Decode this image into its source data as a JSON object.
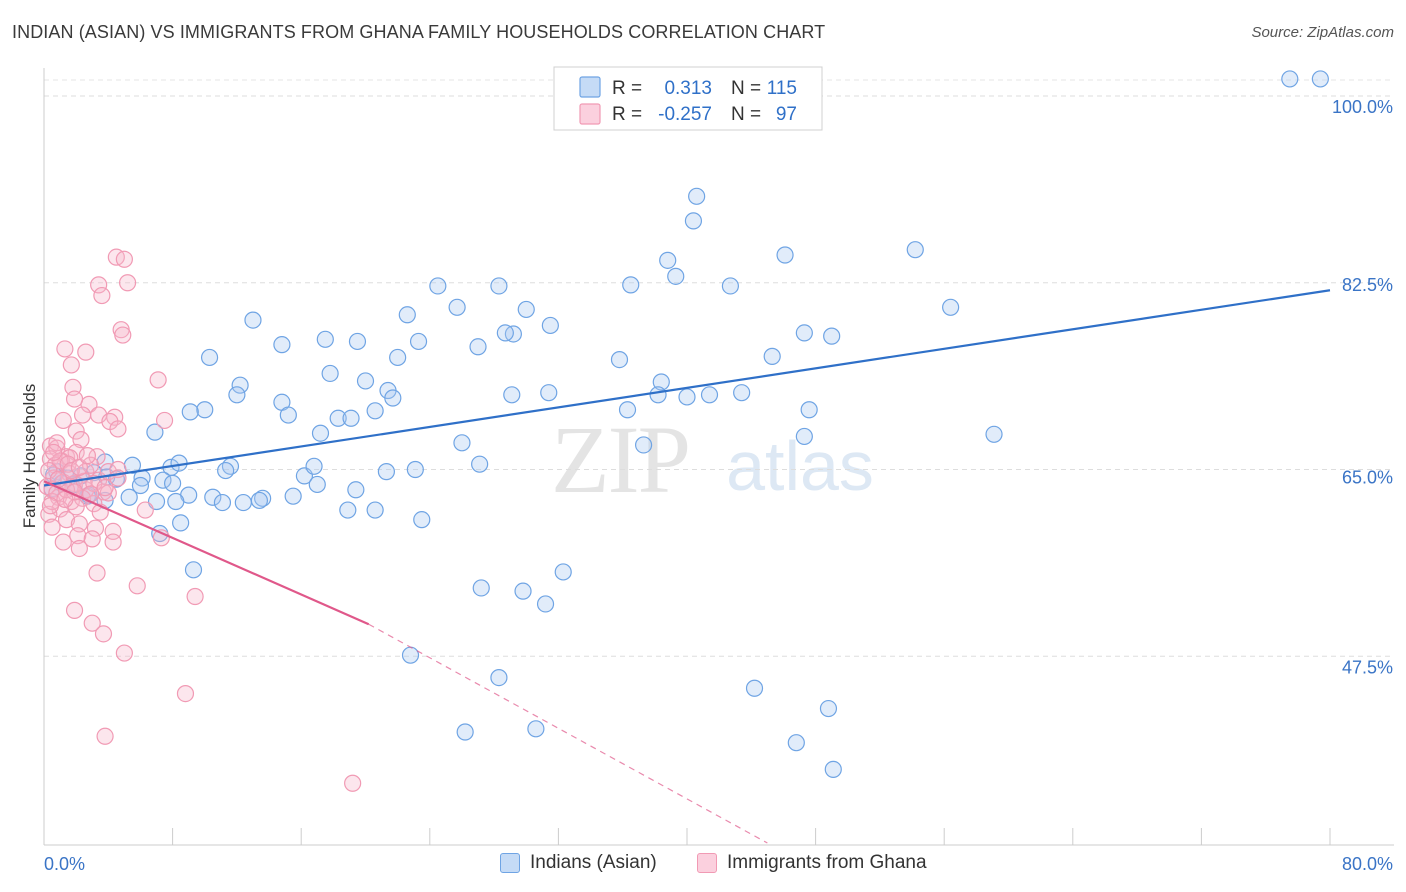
{
  "title": "INDIAN (ASIAN) VS IMMIGRANTS FROM GHANA FAMILY HOUSEHOLDS CORRELATION CHART",
  "source": "Source: ZipAtlas.com",
  "watermark": {
    "zip": "ZIP",
    "atlas": "atlas"
  },
  "legend_box": {
    "rows": [
      {
        "r_label": "R =",
        "r_value": "0.313",
        "n_label": "N =",
        "n_value": "115"
      },
      {
        "r_label": "R =",
        "r_value": "-0.257",
        "n_label": "N =",
        "n_value": "97"
      }
    ]
  },
  "chart_data": {
    "type": "scatter",
    "title": "INDIAN (ASIAN) VS IMMIGRANTS FROM GHANA FAMILY HOUSEHOLDS CORRELATION CHART",
    "xlabel": "",
    "ylabel": "Family Households",
    "xlim": [
      0,
      80
    ],
    "ylim": [
      30,
      101.5
    ],
    "x_tick_labels": [
      {
        "value": 0,
        "label": "0.0%"
      },
      {
        "value": 80,
        "label": "80.0%"
      }
    ],
    "y_tick_labels": [
      {
        "value": 100,
        "label": "100.0%"
      },
      {
        "value": 82.5,
        "label": "82.5%"
      },
      {
        "value": 65,
        "label": "65.0%"
      },
      {
        "value": 47.5,
        "label": "47.5%"
      }
    ],
    "grid": true,
    "series": [
      {
        "name": "Indians (Asian)",
        "color": "#6fa4e4",
        "line_color": "#2f70c8",
        "trend": {
          "x0": 0,
          "y0": 63.5,
          "x1": 80,
          "y1": 81.8
        },
        "points": [
          [
            77.5,
            101.6
          ],
          [
            79.4,
            101.6
          ],
          [
            40.6,
            90.6
          ],
          [
            40.4,
            88.3
          ],
          [
            54.2,
            85.6
          ],
          [
            46.1,
            85.1
          ],
          [
            38.8,
            84.6
          ],
          [
            39.3,
            83.1
          ],
          [
            24.5,
            82.2
          ],
          [
            28.3,
            82.2
          ],
          [
            36.5,
            82.3
          ],
          [
            42.7,
            82.2
          ],
          [
            56.4,
            80.2
          ],
          [
            25.7,
            80.2
          ],
          [
            30.0,
            80.0
          ],
          [
            22.6,
            79.5
          ],
          [
            13.0,
            79.0
          ],
          [
            31.5,
            78.5
          ],
          [
            47.3,
            77.8
          ],
          [
            49.0,
            77.5
          ],
          [
            17.5,
            77.2
          ],
          [
            23.3,
            77.0
          ],
          [
            19.5,
            77.0
          ],
          [
            29.2,
            77.7
          ],
          [
            28.7,
            77.8
          ],
          [
            14.8,
            76.7
          ],
          [
            27.0,
            76.5
          ],
          [
            45.3,
            75.6
          ],
          [
            22.0,
            75.5
          ],
          [
            35.8,
            75.3
          ],
          [
            10.3,
            75.5
          ],
          [
            17.8,
            74.0
          ],
          [
            38.4,
            73.2
          ],
          [
            20.0,
            73.3
          ],
          [
            12.2,
            72.9
          ],
          [
            38.2,
            72.0
          ],
          [
            21.4,
            72.4
          ],
          [
            12.0,
            72.0
          ],
          [
            31.4,
            72.2
          ],
          [
            43.4,
            72.2
          ],
          [
            41.4,
            72.0
          ],
          [
            29.1,
            72.0
          ],
          [
            21.7,
            71.7
          ],
          [
            40.0,
            71.8
          ],
          [
            14.8,
            71.3
          ],
          [
            20.6,
            70.5
          ],
          [
            10.0,
            70.6
          ],
          [
            36.3,
            70.6
          ],
          [
            47.6,
            70.6
          ],
          [
            9.1,
            70.4
          ],
          [
            15.2,
            70.1
          ],
          [
            18.3,
            69.8
          ],
          [
            19.1,
            69.8
          ],
          [
            17.2,
            68.4
          ],
          [
            6.9,
            68.5
          ],
          [
            59.1,
            68.3
          ],
          [
            47.3,
            68.1
          ],
          [
            26.0,
            67.5
          ],
          [
            37.3,
            67.3
          ],
          [
            7.9,
            65.2
          ],
          [
            5.5,
            65.4
          ],
          [
            3.8,
            65.7
          ],
          [
            0.8,
            64.8
          ],
          [
            1.5,
            64.2
          ],
          [
            3.1,
            64.7
          ],
          [
            7.4,
            64.0
          ],
          [
            8.4,
            65.6
          ],
          [
            11.6,
            65.3
          ],
          [
            11.3,
            64.9
          ],
          [
            16.2,
            64.4
          ],
          [
            17.0,
            63.6
          ],
          [
            21.3,
            64.8
          ],
          [
            23.1,
            65.0
          ],
          [
            16.8,
            65.3
          ],
          [
            27.1,
            65.5
          ],
          [
            2.3,
            64.4
          ],
          [
            3.9,
            64.3
          ],
          [
            4.5,
            64.1
          ],
          [
            1.1,
            63.7
          ],
          [
            0.5,
            63.2
          ],
          [
            0.6,
            64.5
          ],
          [
            1.9,
            63.6
          ],
          [
            6.1,
            64.2
          ],
          [
            6.0,
            63.5
          ],
          [
            8.0,
            63.7
          ],
          [
            9.0,
            62.6
          ],
          [
            10.5,
            62.4
          ],
          [
            12.4,
            61.9
          ],
          [
            13.6,
            62.3
          ],
          [
            15.5,
            62.5
          ],
          [
            19.4,
            63.1
          ],
          [
            2.7,
            62.5
          ],
          [
            2.8,
            62.6
          ],
          [
            3.8,
            62.1
          ],
          [
            5.3,
            62.4
          ],
          [
            7.0,
            62.0
          ],
          [
            8.2,
            62.0
          ],
          [
            11.1,
            61.9
          ],
          [
            13.4,
            62.1
          ],
          [
            18.9,
            61.2
          ],
          [
            20.6,
            61.2
          ],
          [
            23.5,
            60.3
          ],
          [
            8.5,
            60.0
          ],
          [
            7.2,
            59.0
          ],
          [
            9.3,
            55.6
          ],
          [
            32.3,
            55.4
          ],
          [
            27.2,
            53.9
          ],
          [
            31.2,
            52.4
          ],
          [
            29.8,
            53.6
          ],
          [
            22.8,
            47.6
          ],
          [
            28.3,
            45.5
          ],
          [
            44.2,
            44.5
          ],
          [
            48.8,
            42.6
          ],
          [
            26.2,
            40.4
          ],
          [
            30.6,
            40.7
          ],
          [
            46.8,
            39.4
          ],
          [
            49.1,
            36.9
          ]
        ]
      },
      {
        "name": "Immigrants from Ghana",
        "color": "#f19ab4",
        "line_color": "#e0588a",
        "trend": {
          "x0": 0,
          "y0": 63.9,
          "x1": 20.2,
          "y1": 50.5
        },
        "trend_dashed": {
          "x0": 20.2,
          "y0": 50.5,
          "x1": 45.0,
          "y1": 30.0
        },
        "points": [
          [
            4.5,
            84.9
          ],
          [
            5.0,
            84.7
          ],
          [
            5.2,
            82.5
          ],
          [
            3.4,
            82.3
          ],
          [
            3.6,
            81.3
          ],
          [
            4.8,
            78.1
          ],
          [
            4.9,
            77.6
          ],
          [
            1.3,
            76.3
          ],
          [
            2.6,
            76.0
          ],
          [
            1.7,
            74.8
          ],
          [
            7.1,
            73.4
          ],
          [
            1.8,
            72.7
          ],
          [
            2.8,
            71.1
          ],
          [
            1.9,
            71.6
          ],
          [
            2.4,
            70.1
          ],
          [
            3.4,
            70.1
          ],
          [
            4.4,
            69.9
          ],
          [
            1.2,
            69.6
          ],
          [
            4.1,
            69.5
          ],
          [
            7.5,
            69.6
          ],
          [
            2.0,
            68.6
          ],
          [
            4.6,
            68.8
          ],
          [
            2.3,
            67.8
          ],
          [
            0.4,
            67.2
          ],
          [
            0.8,
            67.0
          ],
          [
            1.4,
            66.2
          ],
          [
            2.0,
            66.6
          ],
          [
            3.3,
            66.2
          ],
          [
            0.4,
            66.0
          ],
          [
            1.1,
            65.8
          ],
          [
            1.6,
            66.1
          ],
          [
            0.7,
            65.4
          ],
          [
            1.6,
            64.6
          ],
          [
            2.6,
            64.8
          ],
          [
            3.4,
            64.0
          ],
          [
            0.6,
            64.2
          ],
          [
            1.2,
            63.8
          ],
          [
            1.9,
            63.7
          ],
          [
            4.0,
            64.8
          ],
          [
            4.6,
            65.0
          ],
          [
            0.2,
            63.4
          ],
          [
            0.5,
            63.1
          ],
          [
            1.8,
            63.3
          ],
          [
            2.6,
            63.1
          ],
          [
            3.7,
            62.9
          ],
          [
            0.9,
            62.4
          ],
          [
            1.7,
            62.0
          ],
          [
            2.4,
            62.3
          ],
          [
            3.1,
            61.8
          ],
          [
            1.0,
            61.3
          ],
          [
            2.0,
            61.5
          ],
          [
            3.5,
            61.0
          ],
          [
            0.3,
            60.8
          ],
          [
            1.4,
            60.3
          ],
          [
            2.2,
            59.9
          ],
          [
            3.2,
            59.5
          ],
          [
            4.3,
            59.2
          ],
          [
            0.5,
            59.6
          ],
          [
            2.1,
            58.8
          ],
          [
            3.0,
            58.5
          ],
          [
            1.2,
            58.2
          ],
          [
            4.3,
            58.2
          ],
          [
            7.3,
            58.6
          ],
          [
            2.2,
            57.6
          ],
          [
            6.3,
            61.2
          ],
          [
            4.0,
            62.8
          ],
          [
            4.6,
            64.2
          ],
          [
            1.0,
            65.8
          ],
          [
            0.8,
            67.5
          ],
          [
            2.9,
            65.4
          ],
          [
            0.5,
            62.0
          ],
          [
            3.3,
            55.3
          ],
          [
            5.8,
            54.1
          ],
          [
            9.4,
            53.1
          ],
          [
            1.9,
            51.8
          ],
          [
            3.0,
            50.6
          ],
          [
            3.7,
            49.6
          ],
          [
            5.0,
            47.8
          ],
          [
            8.8,
            44.0
          ],
          [
            3.8,
            40.0
          ],
          [
            19.2,
            35.6
          ],
          [
            0.3,
            64.9
          ],
          [
            1.5,
            65.5
          ],
          [
            2.5,
            63.9
          ],
          [
            0.8,
            62.8
          ],
          [
            1.7,
            64.9
          ],
          [
            0.4,
            61.6
          ],
          [
            3.1,
            63.7
          ],
          [
            2.9,
            62.7
          ],
          [
            1.4,
            63.1
          ],
          [
            0.6,
            66.6
          ],
          [
            2.2,
            65.2
          ],
          [
            3.8,
            63.3
          ],
          [
            1.9,
            62.9
          ],
          [
            0.9,
            64.1
          ],
          [
            2.7,
            66.3
          ],
          [
            1.3,
            62.2
          ]
        ]
      }
    ],
    "legend": {
      "position": "bottom",
      "entries": [
        "Indians (Asian)",
        "Immigrants from Ghana"
      ]
    }
  }
}
